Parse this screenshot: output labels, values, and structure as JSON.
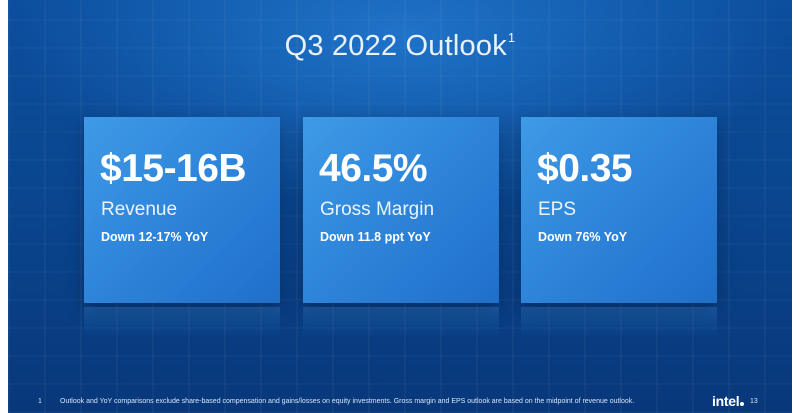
{
  "slide": {
    "title": "Q3 2022 Outlook",
    "title_footnote_marker": "1",
    "cards": [
      {
        "value": "$15-16B",
        "label": "Revenue",
        "sub": "Down 12-17% YoY"
      },
      {
        "value": "46.5%",
        "label": "Gross Margin",
        "sub": "Down 11.8 ppt YoY"
      },
      {
        "value": "$0.35",
        "label": "EPS",
        "sub": "Down 76% YoY"
      }
    ],
    "footnote_number": "1",
    "footnote_text": "Outlook and YoY comparisons exclude share-based compensation and gains/losses on equity investments.  Gross margin and EPS outlook are based on the midpoint of revenue outlook.",
    "logo_text": "intel",
    "page_number": "13"
  },
  "colors": {
    "background": "#0a4690",
    "card": "#2f86db",
    "text": "#ffffff"
  }
}
